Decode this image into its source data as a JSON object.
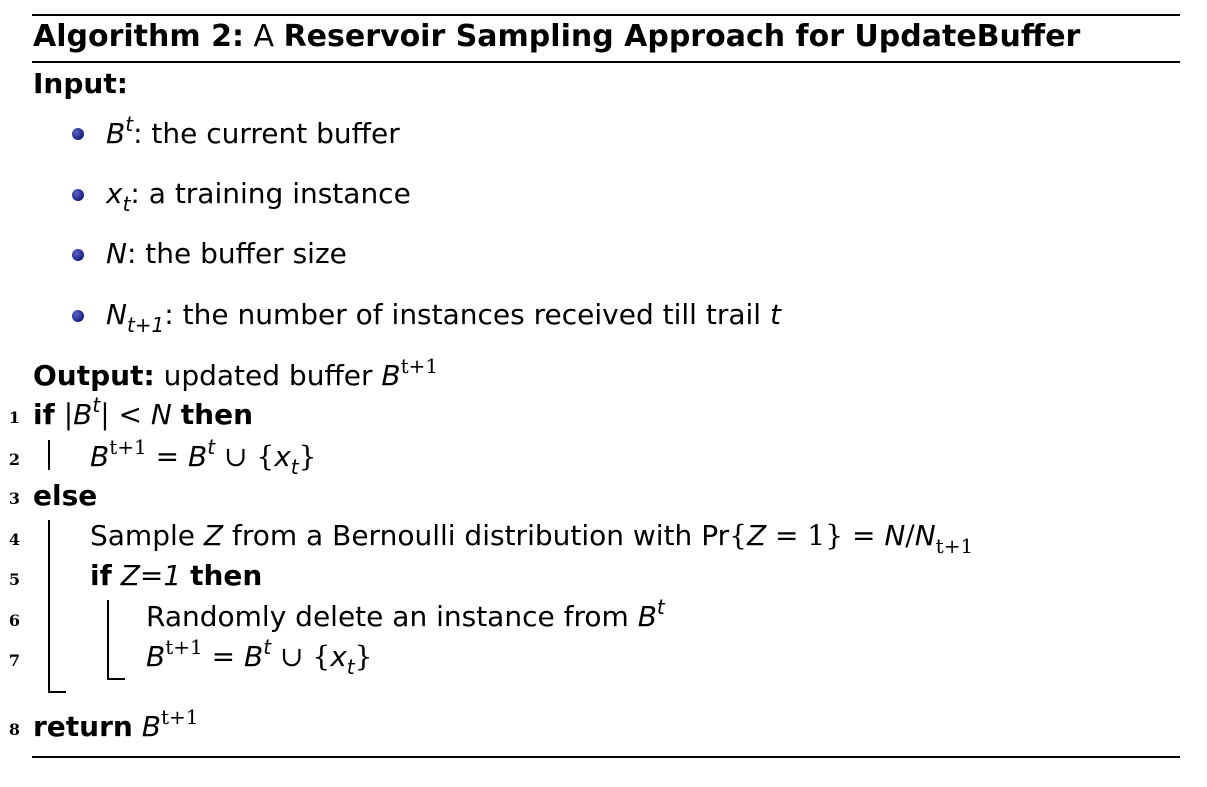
{
  "algorithm": {
    "label": "Algorithm 2:",
    "title_prefix": "A",
    "title": "Reservoir Sampling Approach for UpdateBuffer"
  },
  "input": {
    "label": "Input:",
    "items": [
      {
        "sym": "B",
        "sup": "t",
        "text": ": the current buffer"
      },
      {
        "sym": "x",
        "sub": "t",
        "text": ": a training instance"
      },
      {
        "sym": "N",
        "text": ": the buffer size"
      },
      {
        "sym": "N",
        "sub": "t+1",
        "text": ": the number of instances received till trail",
        "tail": "t"
      }
    ]
  },
  "output": {
    "label": "Output:",
    "text": "updated buffer",
    "sym": "B",
    "sup": "t+1"
  },
  "lines": [
    {
      "num": "1",
      "kw": "if",
      "cond": "|B^t| < N",
      "kw2": "then"
    },
    {
      "num": "2",
      "text": "B^{t+1} = B^t ∪ {x_t}"
    },
    {
      "num": "3",
      "kw": "else"
    },
    {
      "num": "4",
      "text": "Sample Z from a Bernoulli distribution with Pr{Z = 1} = N/N_{t+1}"
    },
    {
      "num": "5",
      "kw": "if",
      "cond": "Z=1",
      "kw2": "then"
    },
    {
      "num": "6",
      "text": "Randomly delete an instance from B^t"
    },
    {
      "num": "7",
      "text": "B^{t+1} = B^t ∪ {x_t}"
    },
    {
      "num": "8",
      "kw": "return",
      "text": "B^{t+1}"
    }
  ],
  "strings": {
    "sample_pre": "Sample",
    "sample_mid": "from a Bernoulli distribution with",
    "pr": "Pr",
    "randomly": "Randomly delete an instance from",
    "then": "then",
    "if": "if",
    "else": "else",
    "return": "return"
  }
}
